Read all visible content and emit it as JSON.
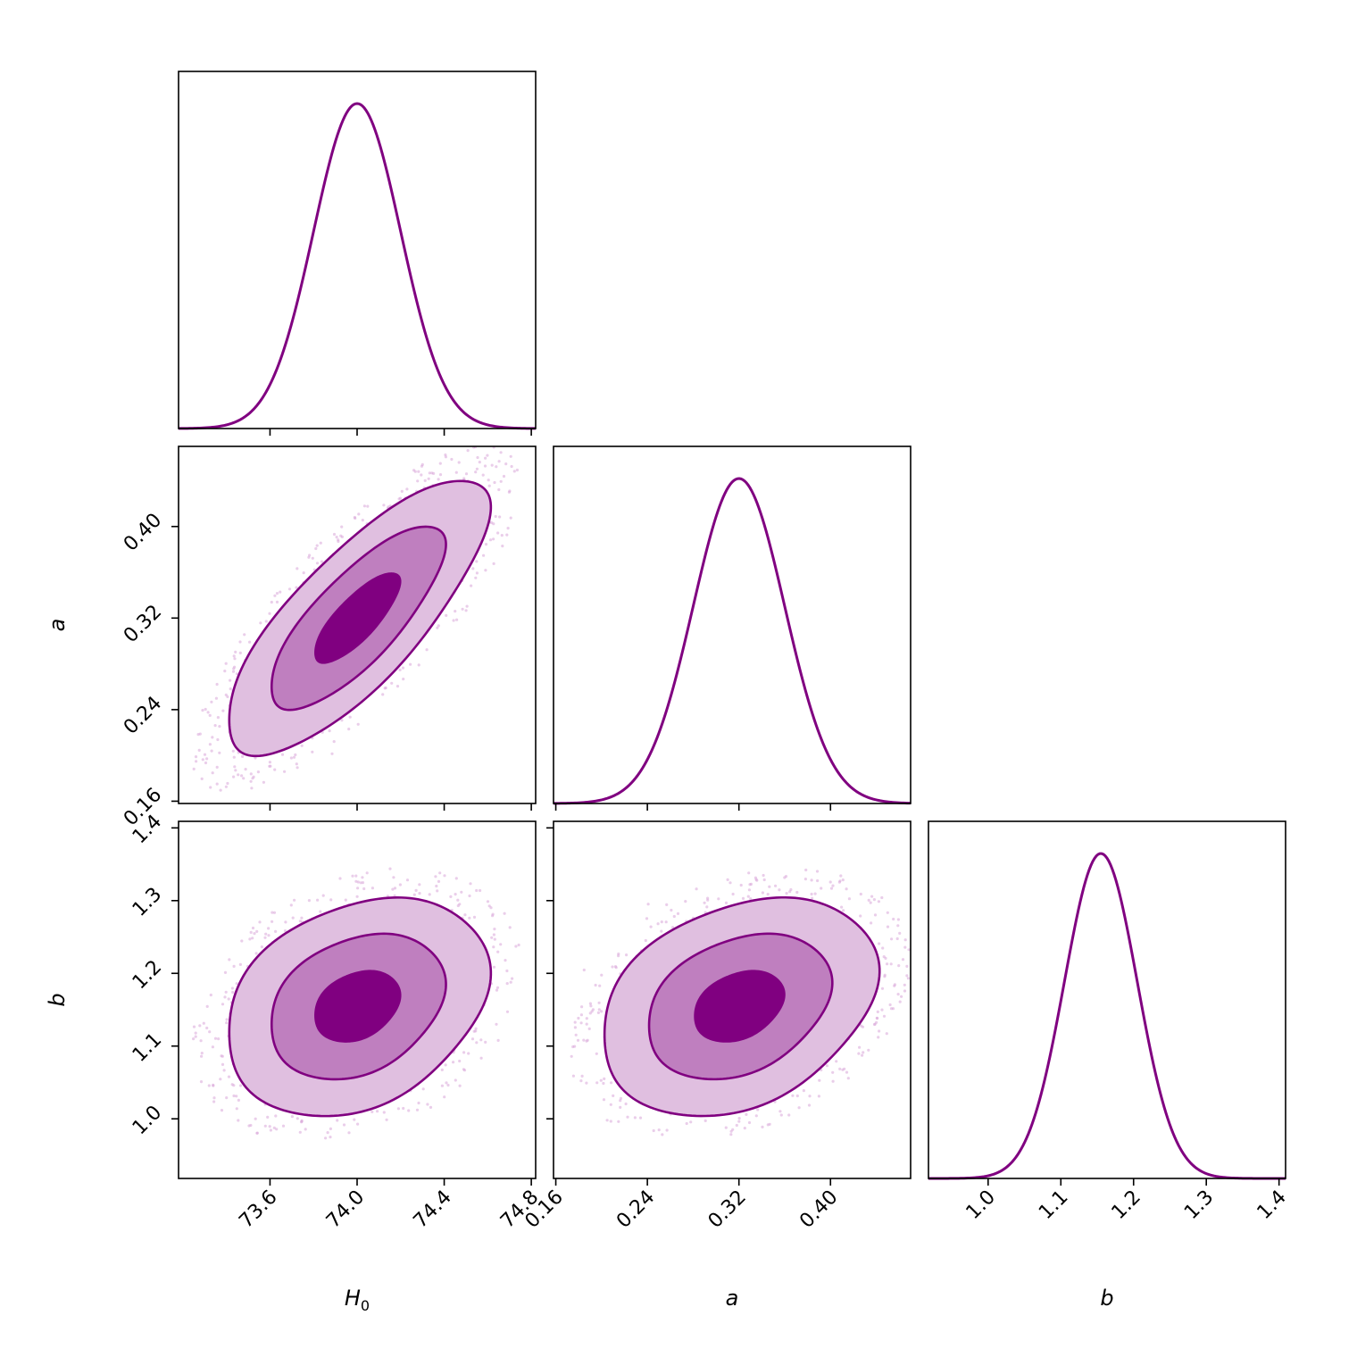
{
  "chart_data": {
    "type": "corner",
    "parameters": [
      {
        "key": "H0",
        "label": "H",
        "label_sub": "0",
        "range": [
          73.18,
          74.82
        ],
        "ticks": [
          73.6,
          74.0,
          74.4,
          74.8
        ],
        "tick_labels": [
          "73.6",
          "74.0",
          "74.4",
          "74.8"
        ]
      },
      {
        "key": "a",
        "label": "a",
        "label_sub": "",
        "range": [
          0.158,
          0.47
        ],
        "ticks": [
          0.16,
          0.24,
          0.32,
          0.4
        ],
        "tick_labels": [
          "0.16",
          "0.24",
          "0.32",
          "0.40"
        ]
      },
      {
        "key": "b",
        "label": "b",
        "label_sub": "",
        "range": [
          0.918,
          1.409
        ],
        "ticks": [
          1.0,
          1.1,
          1.2,
          1.3,
          1.4
        ],
        "tick_labels": [
          "1.0",
          "1.1",
          "1.2",
          "1.3",
          "1.4"
        ]
      }
    ],
    "marginals": [
      {
        "param": "H0",
        "mean": 74.0,
        "sd": 0.2
      },
      {
        "param": "a",
        "mean": 0.32,
        "sd": 0.04
      },
      {
        "param": "b",
        "mean": 1.155,
        "sd": 0.05
      }
    ],
    "joint": [
      {
        "x": "H0",
        "y": "a",
        "mx": 74.0,
        "my": 0.32,
        "sx": 0.2,
        "sy": 0.04,
        "rho": 0.78
      },
      {
        "x": "H0",
        "y": "b",
        "mx": 74.0,
        "my": 1.155,
        "sx": 0.2,
        "sy": 0.05,
        "rho": 0.28
      },
      {
        "x": "a",
        "y": "b",
        "mx": 0.32,
        "my": 1.155,
        "sx": 0.04,
        "sy": 0.05,
        "rho": 0.3
      }
    ],
    "contour_levels": [
      0.393,
      0.865,
      0.989
    ],
    "colors": {
      "line": "#800080",
      "fill_inner": "#800080",
      "fill_mid": "#bf7fbf",
      "fill_outer": "#e0bfe0",
      "scatter": "#d9a6d9"
    },
    "grid": false
  }
}
